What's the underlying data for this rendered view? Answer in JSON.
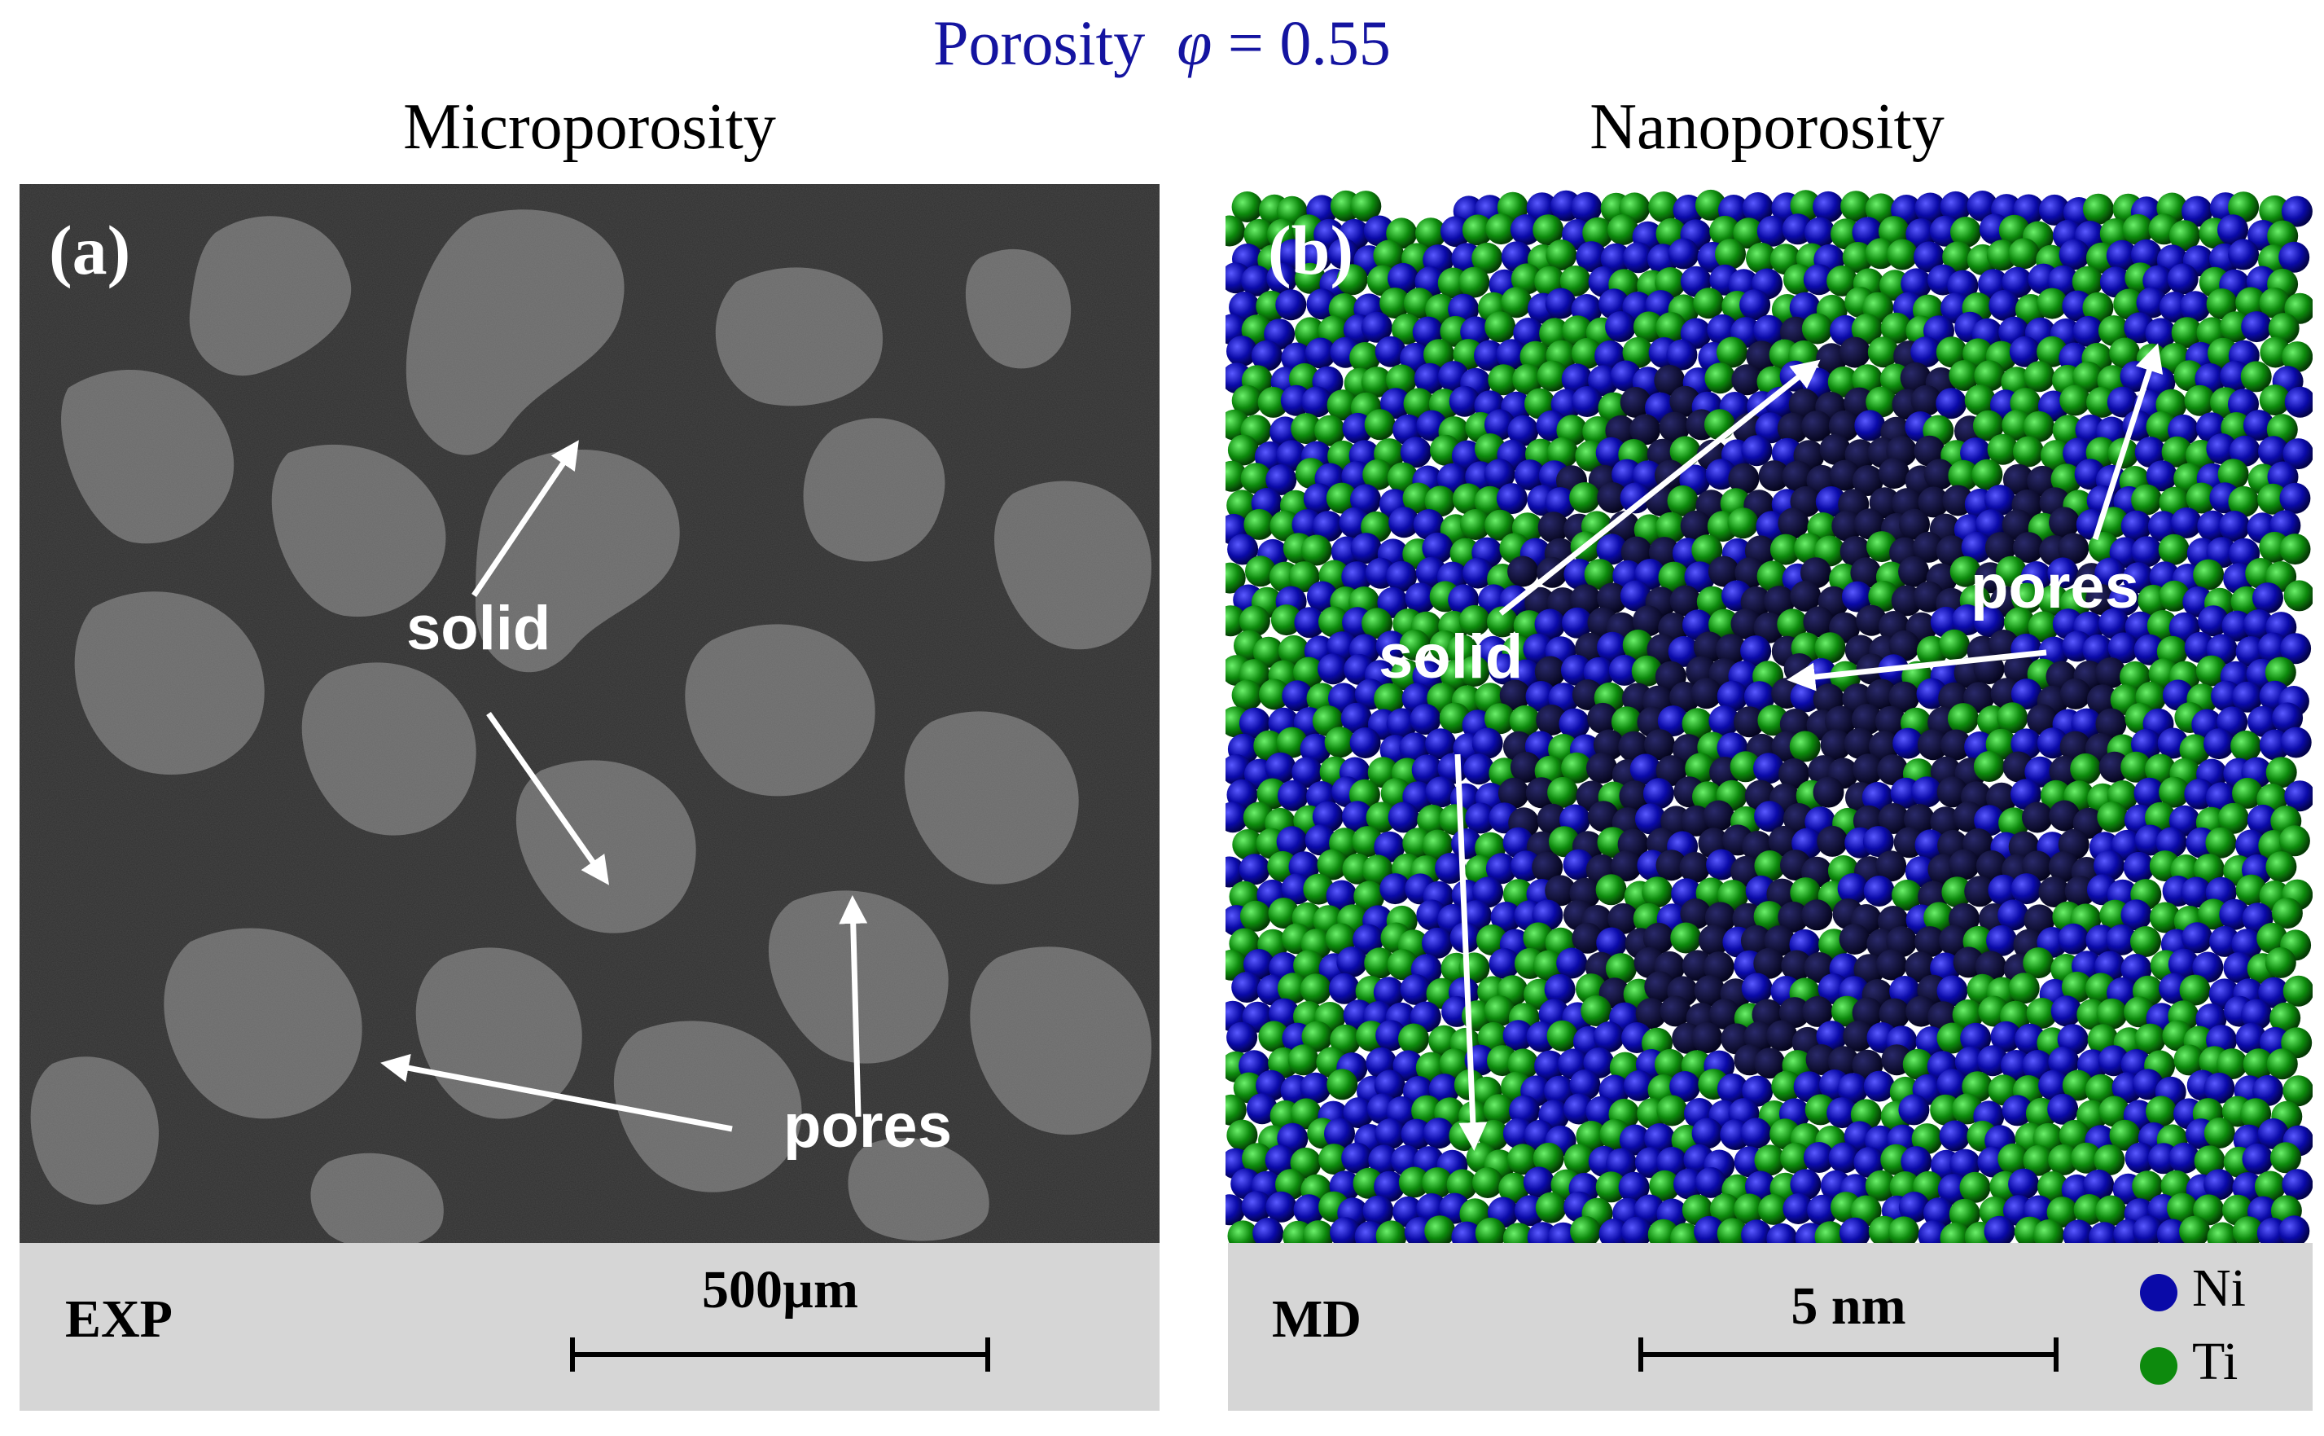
{
  "title": {
    "prefix": "Porosity",
    "symbol": "φ",
    "value": "= 0.55"
  },
  "panel_a": {
    "heading": "Microporosity",
    "tag": "(a)",
    "labels": {
      "solid": "solid",
      "pores": "pores"
    },
    "footer_label": "EXP",
    "scale_label": "500µm",
    "colors": {
      "pore": "#2f2f2f",
      "solid": "#6a6a6a"
    }
  },
  "panel_b": {
    "heading": "Nanoporosity",
    "tag": "(b)",
    "labels": {
      "solid": "solid",
      "pores": "pores"
    },
    "footer_label": "MD",
    "scale_label": "5 nm",
    "legend": [
      {
        "label": "Ni",
        "color": "#0a0aa8"
      },
      {
        "label": "Ti",
        "color": "#0d8a0d"
      }
    ]
  }
}
